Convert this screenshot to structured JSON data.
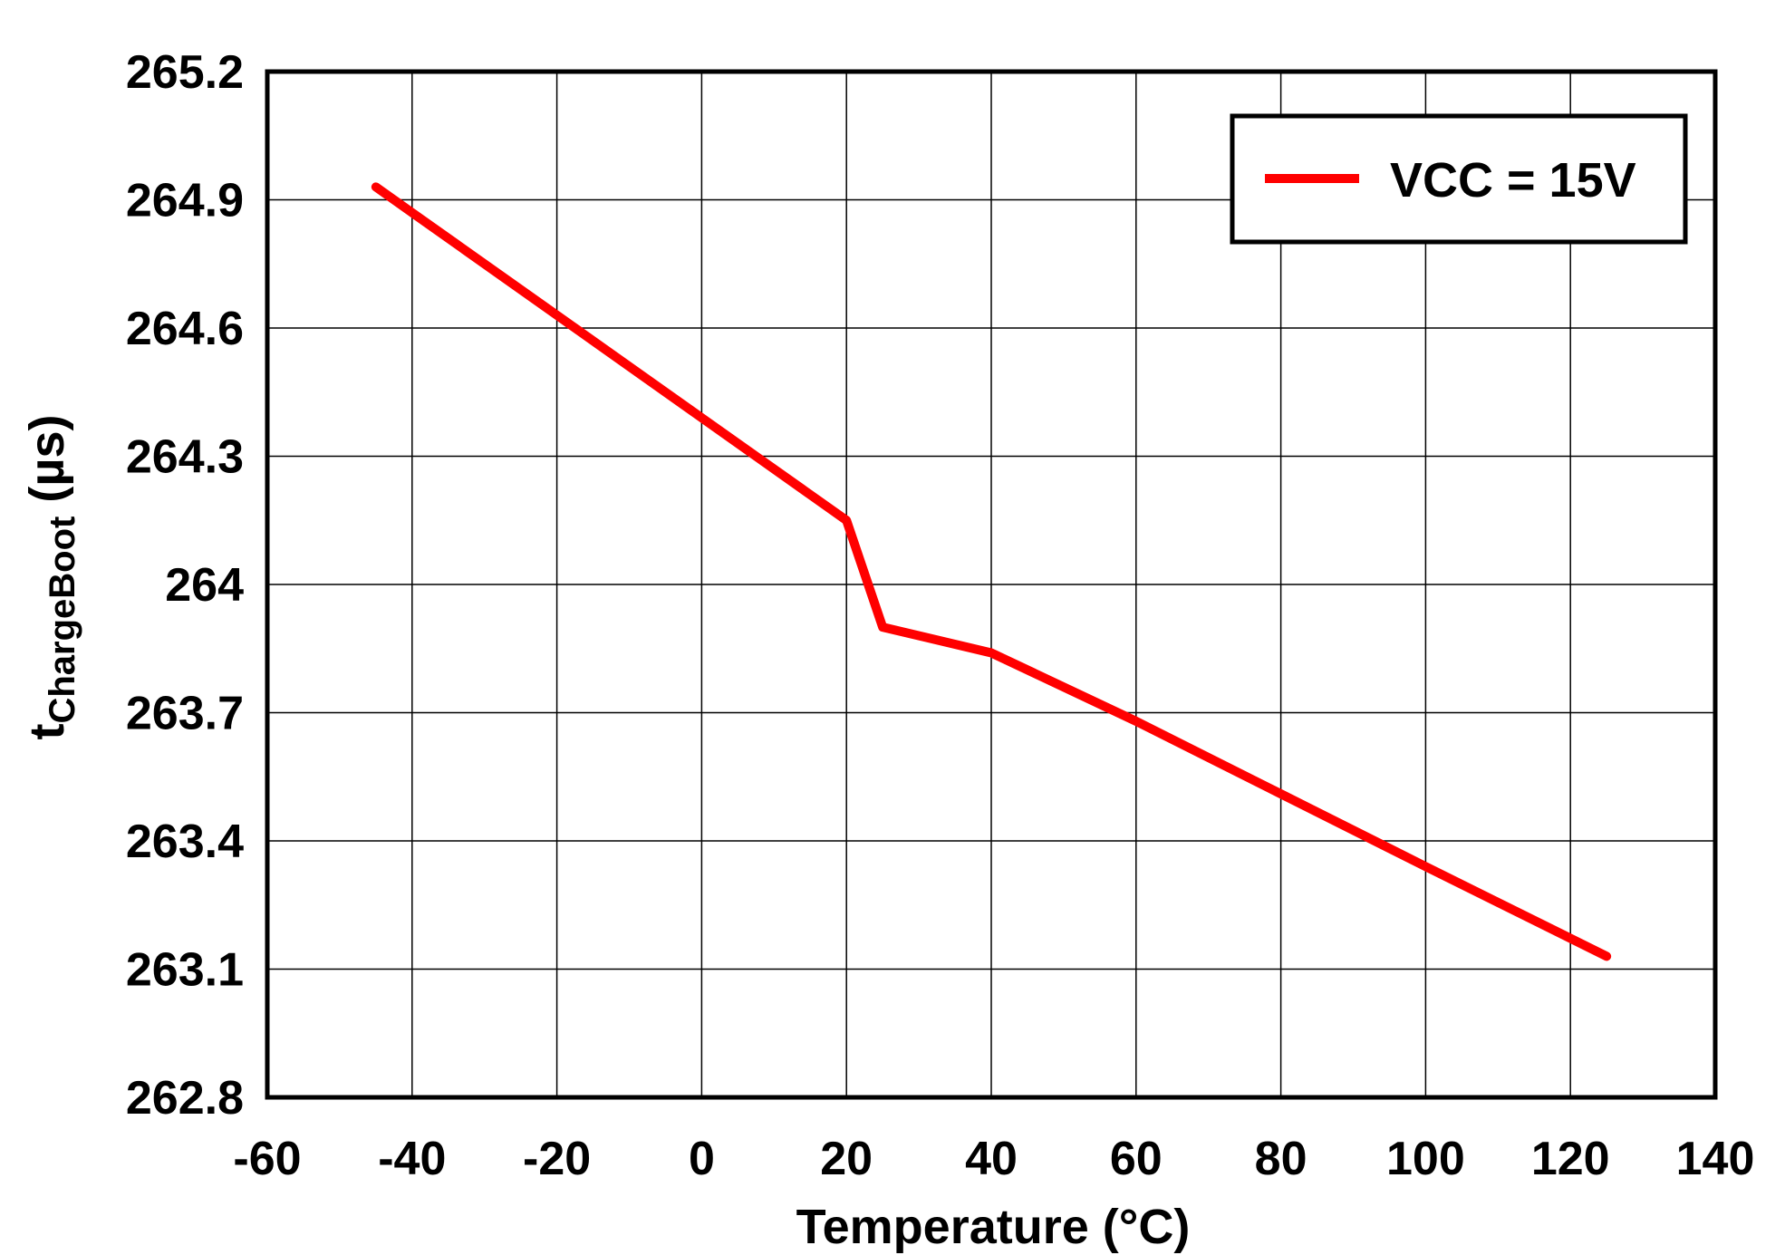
{
  "chart_data": {
    "type": "line",
    "title": "",
    "xlabel": "Temperature (°C)",
    "ylabel_main": "t",
    "ylabel_sub": "ChargeBoot",
    "ylabel_unit": " (µs)",
    "xlim": [
      -60,
      140
    ],
    "ylim": [
      262.8,
      265.2
    ],
    "x_ticks": [
      -60,
      -40,
      -20,
      0,
      20,
      40,
      60,
      80,
      100,
      120,
      140
    ],
    "x_tick_labels": [
      "-60",
      "-40",
      "-20",
      "0",
      "20",
      "40",
      "60",
      "80",
      "100",
      "120",
      "140"
    ],
    "y_ticks": [
      262.8,
      263.1,
      263.4,
      263.7,
      264.0,
      264.3,
      264.6,
      264.9,
      265.2
    ],
    "y_tick_labels": [
      "262.8",
      "263.1",
      "263.4",
      "263.7",
      "264",
      "264.3",
      "264.6",
      "264.9",
      "265.2"
    ],
    "grid": true,
    "legend_position": "top-right",
    "series": [
      {
        "name": "VCC = 15V",
        "color": "#ff0000",
        "x": [
          -45,
          -40,
          -20,
          0,
          20,
          25,
          40,
          60,
          80,
          100,
          125
        ],
        "y": [
          264.93,
          264.87,
          264.63,
          264.39,
          264.15,
          263.9,
          263.84,
          263.68,
          263.51,
          263.34,
          263.13
        ]
      }
    ]
  }
}
